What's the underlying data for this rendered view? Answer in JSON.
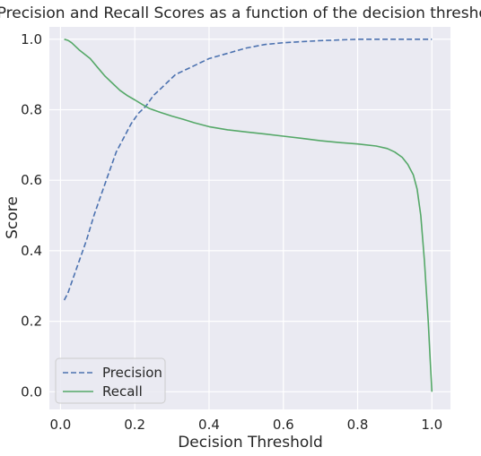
{
  "chart_data": {
    "type": "line",
    "title": "Precision and Recall Scores as a function of the decision threshold",
    "xlabel": "Decision Threshold",
    "ylabel": "Score",
    "xlim": [
      -0.03,
      1.05
    ],
    "ylim": [
      -0.05,
      1.035
    ],
    "xticks": [
      0.0,
      0.2,
      0.4,
      0.6,
      0.8,
      1.0
    ],
    "xtick_labels": [
      "0.0",
      "0.2",
      "0.4",
      "0.6",
      "0.8",
      "1.0"
    ],
    "yticks": [
      0.0,
      0.2,
      0.4,
      0.6,
      0.8,
      1.0
    ],
    "ytick_labels": [
      "0.0",
      "0.2",
      "0.4",
      "0.6",
      "0.8",
      "1.0"
    ],
    "grid": true,
    "legend_position": "lower-left",
    "background": "#eaeaf2",
    "series": [
      {
        "name": "Precision",
        "color": "#4c72b0",
        "style": "dashed",
        "x": [
          0.01,
          0.02,
          0.03,
          0.05,
          0.07,
          0.09,
          0.11,
          0.13,
          0.15,
          0.17,
          0.19,
          0.21,
          0.23,
          0.25,
          0.27,
          0.29,
          0.31,
          0.33,
          0.35,
          0.37,
          0.4,
          0.45,
          0.5,
          0.55,
          0.6,
          0.65,
          0.7,
          0.75,
          0.8,
          0.85,
          0.9,
          0.95,
          1.0
        ],
        "y": [
          0.26,
          0.28,
          0.31,
          0.37,
          0.43,
          0.5,
          0.56,
          0.62,
          0.68,
          0.72,
          0.76,
          0.79,
          0.81,
          0.84,
          0.86,
          0.88,
          0.9,
          0.91,
          0.92,
          0.93,
          0.945,
          0.96,
          0.975,
          0.985,
          0.99,
          0.993,
          0.996,
          0.998,
          1.0,
          1.0,
          1.0,
          1.0,
          1.0
        ]
      },
      {
        "name": "Recall",
        "color": "#55a868",
        "style": "solid",
        "x": [
          0.01,
          0.02,
          0.03,
          0.05,
          0.08,
          0.1,
          0.12,
          0.14,
          0.16,
          0.18,
          0.2,
          0.22,
          0.24,
          0.27,
          0.3,
          0.33,
          0.36,
          0.4,
          0.45,
          0.5,
          0.55,
          0.6,
          0.65,
          0.7,
          0.75,
          0.8,
          0.85,
          0.88,
          0.9,
          0.92,
          0.935,
          0.95,
          0.96,
          0.97,
          0.98,
          0.99,
          0.995,
          1.0
        ],
        "y": [
          1.0,
          0.997,
          0.99,
          0.97,
          0.945,
          0.92,
          0.895,
          0.875,
          0.855,
          0.84,
          0.828,
          0.815,
          0.803,
          0.792,
          0.782,
          0.773,
          0.763,
          0.752,
          0.743,
          0.737,
          0.731,
          0.725,
          0.719,
          0.712,
          0.707,
          0.703,
          0.697,
          0.69,
          0.68,
          0.665,
          0.645,
          0.615,
          0.575,
          0.5,
          0.37,
          0.2,
          0.1,
          0.0
        ]
      }
    ]
  }
}
